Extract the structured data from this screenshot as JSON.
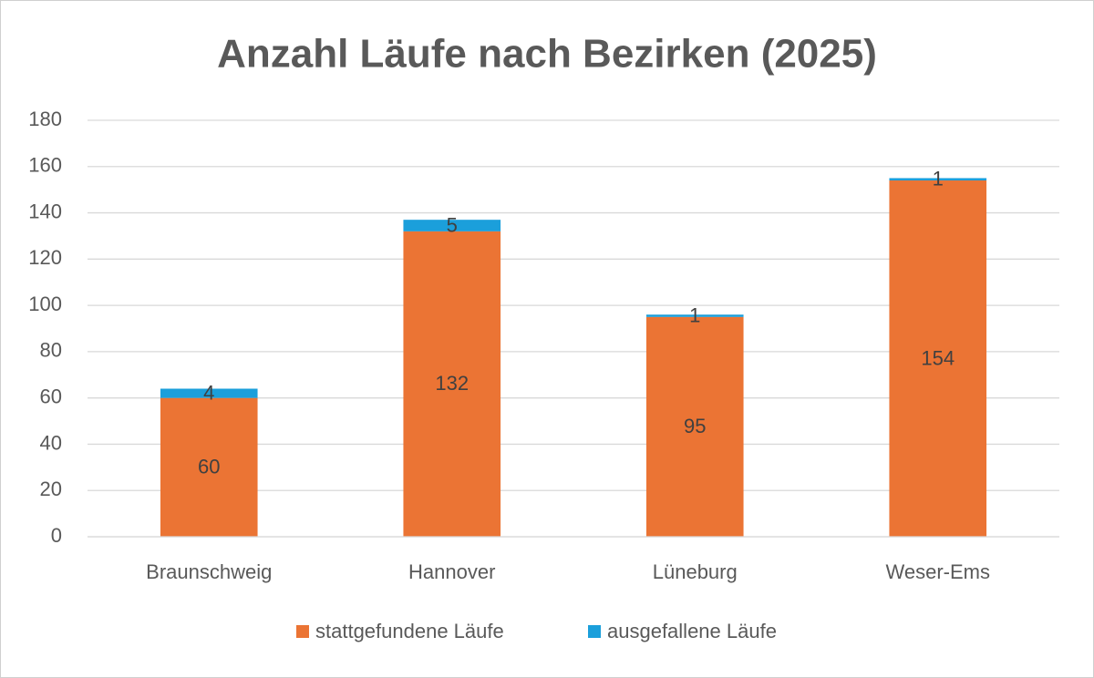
{
  "chart_data": {
    "type": "bar",
    "stacked": true,
    "title": "Anzahl Läufe nach Bezirken (2025)",
    "categories": [
      "Braunschweig",
      "Hannover",
      "Lüneburg",
      "Weser-Ems"
    ],
    "series": [
      {
        "name": "stattgefundene Läufe",
        "color": "#EB7434",
        "values": [
          60,
          132,
          95,
          154
        ]
      },
      {
        "name": "ausgefallene Läufe",
        "color": "#1B9FDB",
        "values": [
          4,
          5,
          1,
          1
        ]
      }
    ],
    "ylim": [
      0,
      180
    ],
    "yticks": [
      0,
      20,
      40,
      60,
      80,
      100,
      120,
      140,
      160,
      180
    ],
    "grid": true,
    "legend": "bottom",
    "data_labels": true
  }
}
